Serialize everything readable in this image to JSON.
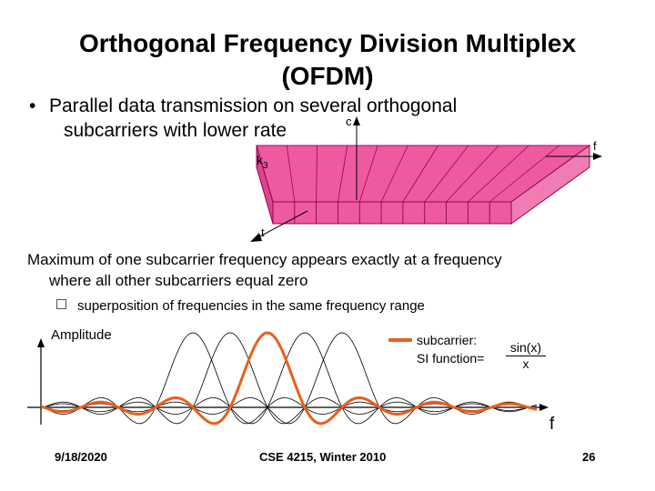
{
  "title": {
    "line1": "Orthogonal Frequency Division Multiplex",
    "line2": "(OFDM)"
  },
  "bullet": {
    "symbol": "•",
    "line1": "Parallel data transmission on several orthogonal",
    "line2": "subcarriers with lower rate"
  },
  "block_diagram": {
    "label_c": "c",
    "label_k": "k",
    "label_k_sub": "3",
    "label_f": "f",
    "label_t": "t",
    "fill_color": "#ee5aa0",
    "subcarrier_count": 11
  },
  "paragraph": {
    "line1": "Maximum of one subcarrier frequency appears exactly at a frequency",
    "line2": "where all other subcarriers equal zero"
  },
  "sub_bullet": "superposition of frequencies in the same frequency range",
  "plot": {
    "y_label": "Amplitude",
    "x_label": "f",
    "legend": {
      "line1": "subcarrier:",
      "line2": "SI function=",
      "numerator": "sin(x)",
      "denominator": "x",
      "color": "#e8601c"
    },
    "subcarrier_count": 5,
    "highlighted_index": 2,
    "curve_color": "#000000"
  },
  "footer": {
    "date": "9/18/2020",
    "course": "CSE 4215, Winter 2010",
    "page": "26"
  }
}
